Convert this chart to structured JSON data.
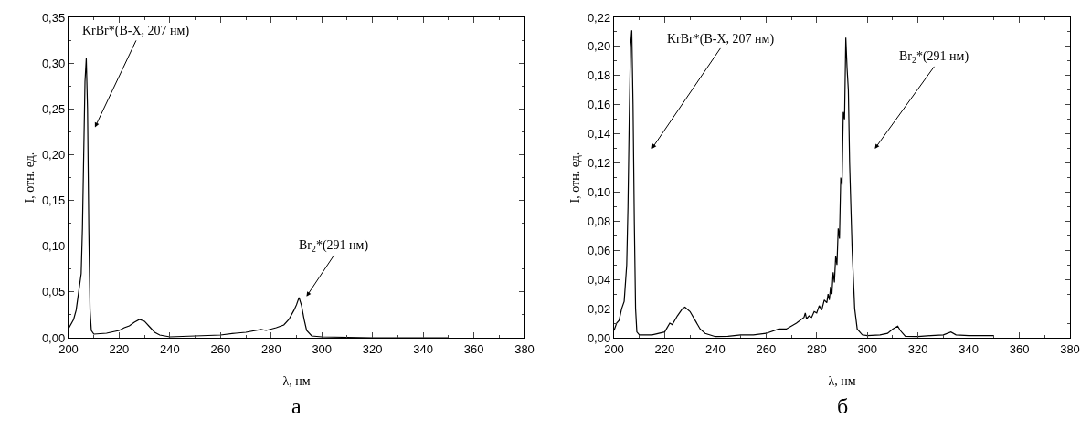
{
  "chart_data": [
    {
      "type": "line",
      "xlabel": "λ, нм",
      "ylabel": "I, отн. ед.",
      "annotations": [
        "KrBr*(B-X, 207 нм)",
        "Br$_{2}$*(291 нм)",
        "а"
      ],
      "xlim": [
        200,
        380
      ],
      "xticks": [
        200,
        220,
        240,
        260,
        280,
        300,
        320,
        340,
        360,
        380
      ],
      "ylim": [
        0,
        0.35
      ],
      "yticks": [
        {
          "value": 0,
          "label": "0,00"
        },
        {
          "value": 0.05,
          "label": "0,05"
        },
        {
          "value": 0.1,
          "label": "0,10"
        },
        {
          "value": 0.15,
          "label": "0,15"
        },
        {
          "value": 0.2,
          "label": "0,20"
        },
        {
          "value": 0.25,
          "label": "0,25"
        },
        {
          "value": 0.3,
          "label": "0,30"
        },
        {
          "value": 0.35,
          "label": "0,35"
        }
      ],
      "grid": false,
      "series": [
        {
          "color": "#000000",
          "x": [
            200,
            202,
            203,
            204,
            205,
            205.5,
            206,
            206.5,
            207,
            207.5,
            208,
            208.5,
            209,
            210,
            215,
            220,
            222,
            224,
            226,
            228,
            230,
            232,
            234,
            236,
            240,
            250,
            260,
            266,
            270,
            276,
            278,
            282,
            285,
            287,
            289,
            290,
            291,
            292,
            293,
            294,
            296,
            300,
            320,
            340,
            350
          ],
          "values": [
            0.01,
            0.02,
            0.03,
            0.05,
            0.07,
            0.12,
            0.2,
            0.28,
            0.305,
            0.25,
            0.12,
            0.03,
            0.008,
            0.004,
            0.005,
            0.008,
            0.011,
            0.013,
            0.017,
            0.02,
            0.018,
            0.012,
            0.006,
            0.003,
            0.001,
            0.002,
            0.003,
            0.005,
            0.006,
            0.009,
            0.008,
            0.011,
            0.014,
            0.02,
            0.03,
            0.036,
            0.044,
            0.035,
            0.02,
            0.008,
            0.002,
            0.001,
            0,
            0,
            0
          ]
        }
      ]
    },
    {
      "type": "line",
      "xlabel": "λ, нм",
      "ylabel": "I, отн. ед.",
      "annotations": [
        "KrBr*(B-X, 207 нм)",
        "Br$_{2}$*(291 нм)",
        "б"
      ],
      "xlim": [
        200,
        380
      ],
      "xticks": [
        200,
        220,
        240,
        260,
        280,
        300,
        320,
        340,
        360,
        380
      ],
      "ylim": [
        0,
        0.22
      ],
      "yticks": [
        {
          "value": 0,
          "label": "0,00"
        },
        {
          "value": 0.02,
          "label": "0,02"
        },
        {
          "value": 0.04,
          "label": "0,04"
        },
        {
          "value": 0.06,
          "label": "0,06"
        },
        {
          "value": 0.08,
          "label": "0,08"
        },
        {
          "value": 0.1,
          "label": "0,10"
        },
        {
          "value": 0.12,
          "label": "0,12"
        },
        {
          "value": 0.14,
          "label": "0,14"
        },
        {
          "value": 0.16,
          "label": "0,16"
        },
        {
          "value": 0.18,
          "label": "0,18"
        },
        {
          "value": 0.2,
          "label": "0,20"
        },
        {
          "value": 0.22,
          "label": "0,22"
        }
      ],
      "grid": false,
      "series": [
        {
          "color": "#000000",
          "x": [
            200,
            201,
            202,
            203,
            204,
            205,
            205.5,
            206,
            206.5,
            207,
            207.5,
            208,
            208.5,
            209,
            210,
            215,
            220,
            222,
            223,
            225,
            227,
            228,
            230,
            232,
            234,
            236,
            240,
            245,
            250,
            255,
            260,
            265,
            268,
            272,
            275,
            275.5,
            276,
            277,
            278,
            279,
            280,
            281,
            282,
            283,
            284,
            284.5,
            285,
            285.5,
            286,
            286.5,
            287,
            287.5,
            288,
            288.5,
            289,
            289.5,
            290,
            290.5,
            291,
            291.5,
            292,
            292.5,
            293,
            294,
            295,
            296,
            298,
            300,
            305,
            308,
            310,
            312,
            313,
            315,
            320,
            325,
            330,
            333,
            335,
            340,
            350
          ],
          "values": [
            0.005,
            0.01,
            0.012,
            0.02,
            0.025,
            0.05,
            0.09,
            0.15,
            0.2,
            0.211,
            0.16,
            0.08,
            0.02,
            0.004,
            0.002,
            0.002,
            0.004,
            0.01,
            0.009,
            0.015,
            0.02,
            0.021,
            0.018,
            0.012,
            0.006,
            0.003,
            0.0008,
            0.001,
            0.002,
            0.002,
            0.003,
            0.006,
            0.006,
            0.01,
            0.014,
            0.017,
            0.013,
            0.015,
            0.014,
            0.018,
            0.017,
            0.022,
            0.019,
            0.026,
            0.024,
            0.03,
            0.026,
            0.035,
            0.03,
            0.045,
            0.038,
            0.056,
            0.05,
            0.075,
            0.068,
            0.11,
            0.105,
            0.155,
            0.15,
            0.206,
            0.185,
            0.17,
            0.12,
            0.06,
            0.02,
            0.006,
            0.002,
            0.0015,
            0.002,
            0.003,
            0.006,
            0.008,
            0.005,
            0.001,
            0.0008,
            0.0015,
            0.002,
            0.004,
            0.002,
            0.0015,
            0.0015
          ]
        }
      ]
    }
  ]
}
